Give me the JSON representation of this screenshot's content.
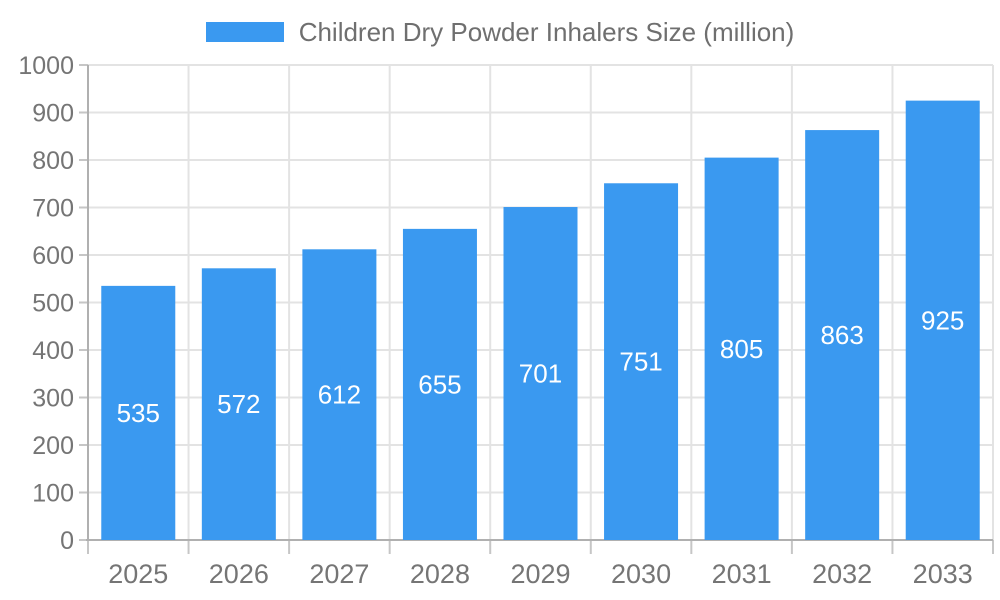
{
  "legend": {
    "label": "Children Dry Powder Inhalers Size (million)",
    "position": "top"
  },
  "chart_data": {
    "type": "bar",
    "title": "Children Dry Powder Inhalers Size (million)",
    "categories": [
      "2025",
      "2026",
      "2027",
      "2028",
      "2029",
      "2030",
      "2031",
      "2032",
      "2033"
    ],
    "values": [
      535,
      572,
      612,
      655,
      701,
      751,
      805,
      863,
      925
    ],
    "series_name": "Children Dry Powder Inhalers Size (million)",
    "xlabel": "",
    "ylabel": "",
    "ylim": [
      0,
      1000
    ],
    "ytick_step": 100,
    "ytick_labels": [
      "0",
      "100",
      "200",
      "300",
      "400",
      "500",
      "600",
      "700",
      "800",
      "900",
      "1000"
    ],
    "grid": true,
    "bar_labels_visible": true,
    "legend_position": "top"
  },
  "colors": {
    "bar": "#3A99F0",
    "grid": "#E3E3E3",
    "axis": "#B0B0B0",
    "tick": "#C6C6C6",
    "axis_label": "#757575",
    "value_label": "#FFFFFF",
    "legend_text": "#6F6F6F",
    "background": "#FFFFFF"
  }
}
